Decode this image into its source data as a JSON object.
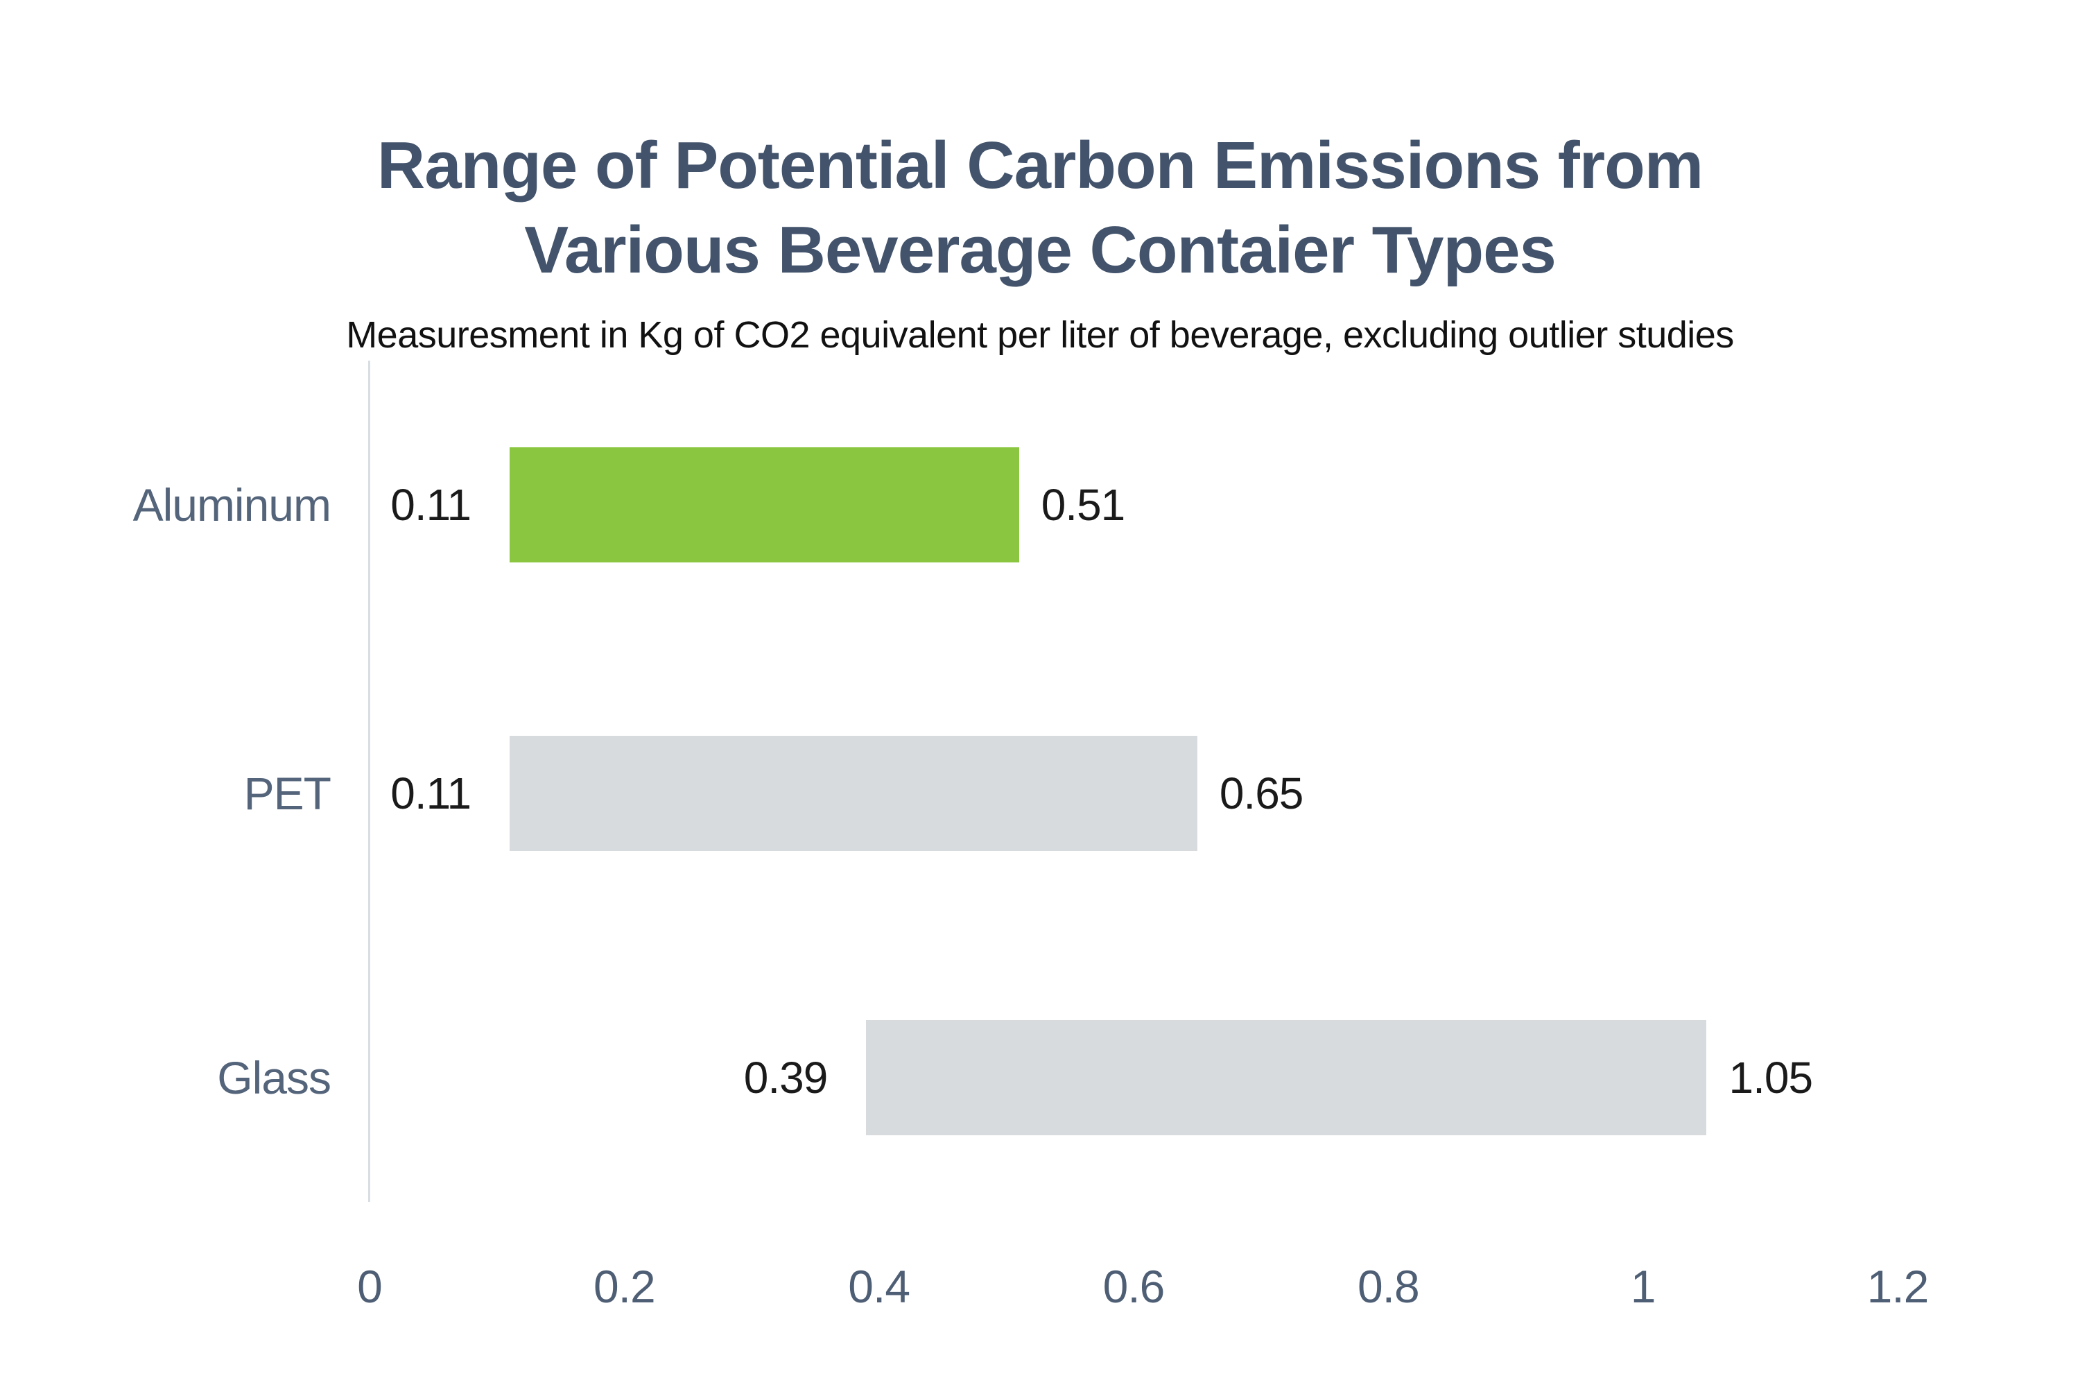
{
  "header": {
    "title_lines": [
      "Range of Potential Carbon Emissions from",
      "Various Beverage Contaier Types"
    ],
    "subtitle": "Measuresment in Kg of CO2 equivalent per liter of beverage, excluding outlier studies"
  },
  "chart_data": {
    "type": "bar",
    "subtype": "horizontal-range",
    "title": "Range of Potential Carbon Emissions from Various Beverage Contaier Types",
    "subtitle": "Measuresment in Kg of CO2 equivalent per liter of beverage, excluding outlier studies",
    "categories": [
      "Aluminum",
      "PET",
      "Glass"
    ],
    "series": [
      {
        "category": "Aluminum",
        "min": 0.11,
        "max": 0.51,
        "min_label": "0.11",
        "max_label": "0.51",
        "color": "#8ac640",
        "highlighted": true
      },
      {
        "category": "PET",
        "min": 0.11,
        "max": 0.65,
        "min_label": "0.11",
        "max_label": "0.65",
        "color": "#d7dbde",
        "highlighted": false
      },
      {
        "category": "Glass",
        "min": 0.39,
        "max": 1.05,
        "min_label": "0.39",
        "max_label": "1.05",
        "color": "#d7dbde",
        "highlighted": false
      }
    ],
    "xlim": [
      0,
      1.2
    ],
    "x_ticks": [
      {
        "value": 0,
        "label": "0"
      },
      {
        "value": 0.2,
        "label": "0.2"
      },
      {
        "value": 0.4,
        "label": "0.4"
      },
      {
        "value": 0.6,
        "label": "0.6"
      },
      {
        "value": 0.8,
        "label": "0.8"
      },
      {
        "value": 1,
        "label": "1"
      },
      {
        "value": 1.2,
        "label": "1.2"
      }
    ],
    "grid": false,
    "legend": false,
    "colors": {
      "highlight_bar": "#8ac640",
      "neutral_bar": "#d7dbde",
      "title_text": "#42536b",
      "subtitle_text": "#111111",
      "category_text": "#54647a",
      "tick_text": "#4e5e74",
      "value_text": "#1a1a1a",
      "axis_line": "#d9dee3",
      "background": "#ffffff"
    }
  }
}
